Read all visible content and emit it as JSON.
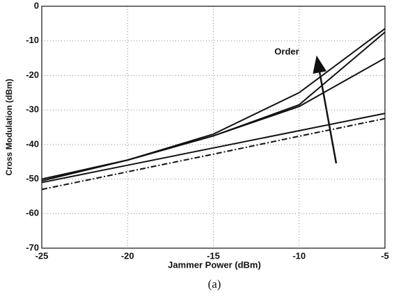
{
  "chart_data": {
    "type": "line",
    "xlabel": "Jammer Power (dBm)",
    "ylabel": "Cross Modulation (dBm)",
    "annotation": "Order",
    "caption": "(a)",
    "x": [
      -25,
      -20,
      -15,
      -10,
      -5
    ],
    "series": [
      {
        "color": "#111111",
        "style": "solid",
        "values": [
          -50,
          -44.5,
          -37,
          -25,
          -6.5
        ]
      },
      {
        "color": "#111111",
        "style": "solid",
        "values": [
          -50.5,
          -44.5,
          -37.5,
          -28.5,
          -7.5
        ]
      },
      {
        "color": "#111111",
        "style": "solid",
        "values": [
          -50.5,
          -44.5,
          -37.5,
          -29,
          -15
        ]
      },
      {
        "color": "#111111",
        "style": "solid",
        "values": [
          -51,
          -46,
          -41,
          -36,
          -31
        ]
      },
      {
        "color": "#111111",
        "style": "dashdot",
        "values": [
          -53,
          -47.9,
          -42.8,
          -37.6,
          -32.5
        ]
      }
    ],
    "xlim": [
      -25,
      -5
    ],
    "xticks": [
      -25,
      -20,
      -15,
      -10,
      -5
    ],
    "ylim": [
      -70,
      0
    ],
    "yticks": [
      -70,
      -60,
      -50,
      -40,
      -30,
      -20,
      -10,
      0
    ],
    "grid": true
  }
}
